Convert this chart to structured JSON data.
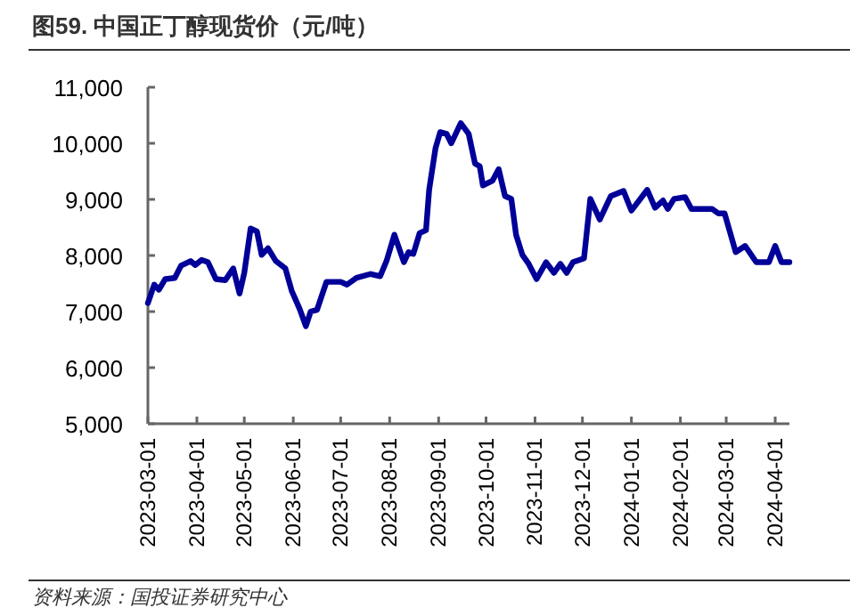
{
  "chart_data": {
    "type": "line",
    "title": "图59. 中国正丁醇现货价（元/吨）",
    "annotations": [
      "资料来源：国投证券研究中心"
    ],
    "x": [
      "2023-03-01",
      "2023-03-05",
      "2023-03-08",
      "2023-03-12",
      "2023-03-18",
      "2023-03-22",
      "2023-03-28",
      "2023-03-31",
      "2023-04-04",
      "2023-04-08",
      "2023-04-13",
      "2023-04-19",
      "2023-04-24",
      "2023-04-28",
      "2023-05-01",
      "2023-05-05",
      "2023-05-09",
      "2023-05-12",
      "2023-05-16",
      "2023-05-21",
      "2023-05-27",
      "2023-05-31",
      "2023-06-05",
      "2023-06-09",
      "2023-06-12",
      "2023-06-16",
      "2023-06-22",
      "2023-07-01",
      "2023-07-05",
      "2023-07-11",
      "2023-07-20",
      "2023-07-26",
      "2023-07-30",
      "2023-08-04",
      "2023-08-10",
      "2023-08-13",
      "2023-08-16",
      "2023-08-20",
      "2023-08-24",
      "2023-08-26",
      "2023-08-30",
      "2023-09-02",
      "2023-09-06",
      "2023-09-09",
      "2023-09-15",
      "2023-09-20",
      "2023-09-24",
      "2023-09-27",
      "2023-09-29",
      "2023-10-05",
      "2023-10-09",
      "2023-10-13",
      "2023-10-17",
      "2023-10-20",
      "2023-10-24",
      "2023-10-28",
      "2023-11-02",
      "2023-11-08",
      "2023-11-13",
      "2023-11-17",
      "2023-11-21",
      "2023-11-25",
      "2023-12-02",
      "2023-12-06",
      "2023-12-12",
      "2023-12-19",
      "2023-12-27",
      "2024-01-01",
      "2024-01-11",
      "2024-01-16",
      "2024-01-21",
      "2024-01-24",
      "2024-01-28",
      "2024-02-04",
      "2024-02-08",
      "2024-02-21",
      "2024-02-25",
      "2024-02-29",
      "2024-03-07",
      "2024-03-13",
      "2024-03-20",
      "2024-03-28",
      "2024-04-01",
      "2024-04-05",
      "2024-04-10"
    ],
    "series": [
      {
        "color": "#000099",
        "values": [
          7150,
          7480,
          7390,
          7580,
          7600,
          7820,
          7900,
          7830,
          7920,
          7880,
          7580,
          7560,
          7770,
          7320,
          7690,
          8480,
          8430,
          8010,
          8130,
          7900,
          7770,
          7370,
          7050,
          6740,
          7000,
          7030,
          7530,
          7530,
          7480,
          7600,
          7670,
          7630,
          7900,
          8370,
          7880,
          8060,
          8030,
          8400,
          8450,
          9170,
          9910,
          10200,
          10170,
          10000,
          10360,
          10170,
          9640,
          9590,
          9250,
          9330,
          9540,
          9060,
          9010,
          8370,
          8010,
          7850,
          7580,
          7880,
          7690,
          7850,
          7690,
          7880,
          7950,
          9010,
          8640,
          9060,
          9150,
          8800,
          9170,
          8850,
          8980,
          8830,
          9010,
          9040,
          8830,
          8830,
          8750,
          8750,
          8060,
          8170,
          7880,
          7880,
          8170,
          7880,
          7880
        ]
      }
    ],
    "xlim": [
      "2023-03-01",
      "2024-04-10"
    ],
    "xticks": [
      {
        "value": "2023-03-01",
        "label": "2023-03-01"
      },
      {
        "value": "2023-04-01",
        "label": "2023-04-01"
      },
      {
        "value": "2023-05-01",
        "label": "2023-05-01"
      },
      {
        "value": "2023-06-01",
        "label": "2023-06-01"
      },
      {
        "value": "2023-07-01",
        "label": "2023-07-01"
      },
      {
        "value": "2023-08-01",
        "label": "2023-08-01"
      },
      {
        "value": "2023-09-01",
        "label": "2023-09-01"
      },
      {
        "value": "2023-10-01",
        "label": "2023-10-01"
      },
      {
        "value": "2023-11-01",
        "label": "2023-11-01"
      },
      {
        "value": "2023-12-01",
        "label": "2023-12-01"
      },
      {
        "value": "2024-01-01",
        "label": "2024-01-01"
      },
      {
        "value": "2024-02-01",
        "label": "2024-02-01"
      },
      {
        "value": "2024-03-01",
        "label": "2024-03-01"
      },
      {
        "value": "2024-04-01",
        "label": "2024-04-01"
      }
    ],
    "ylim": [
      5000,
      11000
    ],
    "yticks": [
      {
        "value": 5000,
        "label": "5,000"
      },
      {
        "value": 6000,
        "label": "6,000"
      },
      {
        "value": 7000,
        "label": "7,000"
      },
      {
        "value": 8000,
        "label": "8,000"
      },
      {
        "value": 9000,
        "label": "9,000"
      },
      {
        "value": 10000,
        "label": "10,000"
      },
      {
        "value": 11000,
        "label": "11,000"
      }
    ],
    "grid": false,
    "marker": "none",
    "line_style": "solid"
  }
}
